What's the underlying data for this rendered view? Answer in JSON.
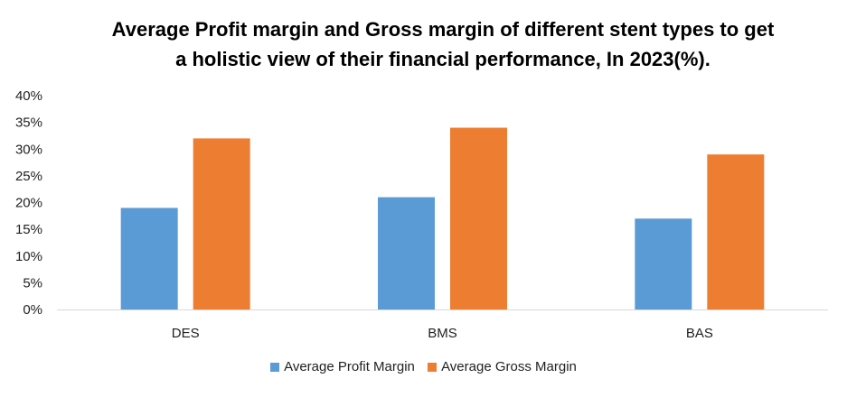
{
  "chart_data": {
    "type": "bar",
    "title_line1": "Average Profit margin and Gross margin of different stent types to get",
    "title_line2": "a  holistic view of their financial performance, In 2023(%).",
    "categories": [
      "DES",
      "BMS",
      "BAS"
    ],
    "series": [
      {
        "name": "Average Profit Margin",
        "color": "#5B9BD5",
        "values": [
          19,
          21,
          17
        ]
      },
      {
        "name": "Average Gross Margin",
        "color": "#ED7D31",
        "values": [
          32,
          34,
          29
        ]
      }
    ],
    "ylim": [
      0,
      40
    ],
    "yticks": [
      "0%",
      "5%",
      "10%",
      "15%",
      "20%",
      "25%",
      "30%",
      "35%",
      "40%"
    ],
    "xlabel": "",
    "ylabel": "",
    "grid": false,
    "legend_position": "bottom"
  }
}
